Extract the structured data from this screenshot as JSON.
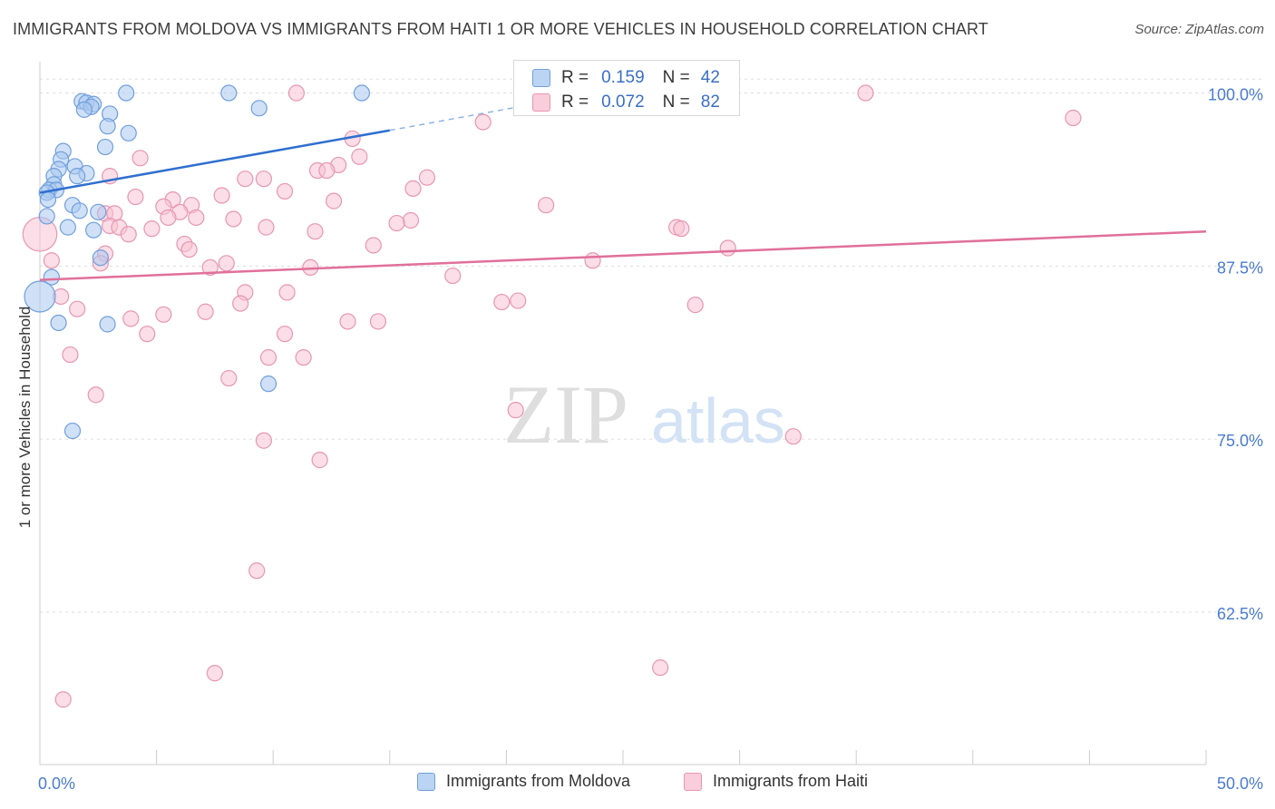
{
  "title": "IMMIGRANTS FROM MOLDOVA VS IMMIGRANTS FROM HAITI 1 OR MORE VEHICLES IN HOUSEHOLD CORRELATION CHART",
  "source": "Source: ZipAtlas.com",
  "watermark": {
    "zip": "ZIP",
    "atlas": "atlas"
  },
  "legend": {
    "r_label": "R =",
    "n_label": "N =",
    "moldova": {
      "r": "0.159",
      "n": "42"
    },
    "haiti": {
      "r": "0.072",
      "n": "82"
    }
  },
  "colors": {
    "moldova_fill": "#a9c8f0",
    "moldova_stroke": "#6f9fdc",
    "moldova_line": "#2f6fcf",
    "haiti_fill": "#f7c3d3",
    "haiti_stroke": "#e796b2",
    "haiti_line": "#e0709a",
    "tick_label": "#4a7bd0",
    "grid": "#dddddd"
  },
  "chart_data": {
    "type": "scatter",
    "title": "IMMIGRANTS FROM MOLDOVA VS IMMIGRANTS FROM HAITI 1 OR MORE VEHICLES IN HOUSEHOLD CORRELATION CHART",
    "xlabel": "",
    "ylabel": "1 or more Vehicles in Household",
    "xlim": [
      0,
      50
    ],
    "ylim": [
      51.5,
      102
    ],
    "x_tick_labels": [
      "0.0%",
      "50.0%"
    ],
    "y_ticks": [
      {
        "value": 100,
        "label": "100.0%"
      },
      {
        "value": 87.5,
        "label": "87.5%"
      },
      {
        "value": 75,
        "label": "75.0%"
      },
      {
        "value": 62.5,
        "label": "62.5%"
      }
    ],
    "grid": "horizontal dashed",
    "legend_position": "top-center",
    "series": [
      {
        "name": "Immigrants from Moldova",
        "r": 0.159,
        "n": 42,
        "trend": {
          "x0": 0,
          "y0": 92.8,
          "x1": 15,
          "y1": 97.3,
          "dash_to_x": 21.5,
          "dash_to_y": 99.3
        },
        "points": [
          [
            3.7,
            100
          ],
          [
            8.1,
            100
          ],
          [
            13.8,
            100
          ],
          [
            1.8,
            99.4
          ],
          [
            2.0,
            99.3
          ],
          [
            2.3,
            99.2
          ],
          [
            2.2,
            99.0
          ],
          [
            1.9,
            98.8
          ],
          [
            9.4,
            98.9
          ],
          [
            3.0,
            98.5
          ],
          [
            2.9,
            97.6
          ],
          [
            3.8,
            97.1
          ],
          [
            2.8,
            96.1
          ],
          [
            1.0,
            95.8
          ],
          [
            0.9,
            95.2
          ],
          [
            1.5,
            94.7
          ],
          [
            0.8,
            94.5
          ],
          [
            2.0,
            94.2
          ],
          [
            0.6,
            94.0
          ],
          [
            1.6,
            94.0
          ],
          [
            0.6,
            93.4
          ],
          [
            0.4,
            93.0
          ],
          [
            0.7,
            93.0
          ],
          [
            0.3,
            92.8
          ],
          [
            0.35,
            92.3
          ],
          [
            1.4,
            91.9
          ],
          [
            1.7,
            91.5
          ],
          [
            2.5,
            91.4
          ],
          [
            0.3,
            91.1
          ],
          [
            1.2,
            90.3
          ],
          [
            2.3,
            90.1
          ],
          [
            2.6,
            88.1
          ],
          [
            0.5,
            86.7
          ],
          [
            0.0,
            85.3
          ],
          [
            0.8,
            83.4
          ],
          [
            2.9,
            83.3
          ],
          [
            9.8,
            79.0
          ],
          [
            1.4,
            75.6
          ]
        ],
        "sizes": [
          1,
          1,
          1,
          1,
          1,
          1,
          1,
          1,
          1,
          1,
          1,
          1,
          1,
          1,
          1,
          1,
          1,
          1,
          1,
          1,
          1,
          1,
          1,
          1,
          1,
          1,
          1,
          1,
          1,
          1,
          1,
          1,
          1,
          2,
          1,
          1,
          1,
          1
        ]
      },
      {
        "name": "Immigrants from Haiti",
        "r": 0.072,
        "n": 82,
        "trend": {
          "x0": 0,
          "y0": 86.5,
          "x1": 50,
          "y1": 90.0
        },
        "points": [
          [
            11.0,
            100
          ],
          [
            35.4,
            100
          ],
          [
            44.3,
            98.2
          ],
          [
            19.0,
            97.9
          ],
          [
            13.4,
            96.7
          ],
          [
            13.7,
            95.4
          ],
          [
            4.3,
            95.3
          ],
          [
            12.8,
            94.8
          ],
          [
            11.9,
            94.4
          ],
          [
            12.3,
            94.4
          ],
          [
            3.0,
            94.0
          ],
          [
            8.8,
            93.8
          ],
          [
            9.6,
            93.8
          ],
          [
            16.6,
            93.9
          ],
          [
            16.0,
            93.1
          ],
          [
            10.5,
            92.9
          ],
          [
            7.8,
            92.6
          ],
          [
            4.1,
            92.5
          ],
          [
            5.7,
            92.3
          ],
          [
            12.6,
            92.2
          ],
          [
            21.7,
            91.9
          ],
          [
            5.3,
            91.8
          ],
          [
            6.5,
            91.9
          ],
          [
            6.0,
            91.4
          ],
          [
            5.5,
            91.0
          ],
          [
            6.7,
            91.0
          ],
          [
            8.3,
            90.9
          ],
          [
            15.9,
            90.8
          ],
          [
            2.8,
            91.3
          ],
          [
            3.2,
            91.3
          ],
          [
            15.3,
            90.6
          ],
          [
            3.0,
            90.4
          ],
          [
            4.8,
            90.2
          ],
          [
            9.7,
            90.3
          ],
          [
            3.4,
            90.3
          ],
          [
            27.3,
            90.3
          ],
          [
            27.5,
            90.2
          ],
          [
            11.8,
            90.0
          ],
          [
            3.8,
            89.8
          ],
          [
            0.0,
            89.8
          ],
          [
            6.2,
            89.1
          ],
          [
            14.3,
            89.0
          ],
          [
            6.4,
            88.7
          ],
          [
            2.8,
            88.4
          ],
          [
            29.5,
            88.8
          ],
          [
            0.5,
            87.9
          ],
          [
            23.7,
            87.9
          ],
          [
            2.6,
            87.7
          ],
          [
            8.0,
            87.7
          ],
          [
            7.3,
            87.4
          ],
          [
            11.6,
            87.4
          ],
          [
            17.7,
            86.8
          ],
          [
            8.8,
            85.6
          ],
          [
            10.6,
            85.6
          ],
          [
            0.9,
            85.3
          ],
          [
            19.8,
            84.9
          ],
          [
            20.5,
            85.0
          ],
          [
            8.6,
            84.8
          ],
          [
            28.1,
            84.7
          ],
          [
            1.6,
            84.4
          ],
          [
            7.1,
            84.2
          ],
          [
            5.3,
            84.0
          ],
          [
            3.9,
            83.7
          ],
          [
            13.2,
            83.5
          ],
          [
            14.5,
            83.5
          ],
          [
            4.6,
            82.6
          ],
          [
            10.5,
            82.6
          ],
          [
            1.3,
            81.1
          ],
          [
            9.8,
            80.9
          ],
          [
            11.3,
            80.9
          ],
          [
            8.1,
            79.4
          ],
          [
            2.4,
            78.2
          ],
          [
            20.4,
            77.1
          ],
          [
            32.3,
            75.2
          ],
          [
            9.6,
            74.9
          ],
          [
            12.0,
            73.5
          ],
          [
            9.3,
            65.5
          ],
          [
            26.6,
            58.5
          ],
          [
            7.5,
            58.1
          ],
          [
            1.0,
            56.2
          ]
        ],
        "sizes": [
          1,
          1,
          1,
          1,
          1,
          1,
          1,
          1,
          1,
          1,
          1,
          1,
          1,
          1,
          1,
          1,
          1,
          1,
          1,
          1,
          1,
          1,
          1,
          1,
          1,
          1,
          1,
          1,
          1,
          1,
          1,
          1,
          1,
          1,
          1,
          1,
          1,
          1,
          1,
          2.2,
          1,
          1,
          1,
          1,
          1,
          1,
          1,
          1,
          1,
          1,
          1,
          1,
          1,
          1,
          1,
          1,
          1,
          1,
          1,
          1,
          1,
          1,
          1,
          1,
          1,
          1,
          1,
          1,
          1,
          1,
          1,
          1,
          1,
          1,
          1,
          1,
          1,
          1,
          1,
          1
        ]
      }
    ]
  }
}
